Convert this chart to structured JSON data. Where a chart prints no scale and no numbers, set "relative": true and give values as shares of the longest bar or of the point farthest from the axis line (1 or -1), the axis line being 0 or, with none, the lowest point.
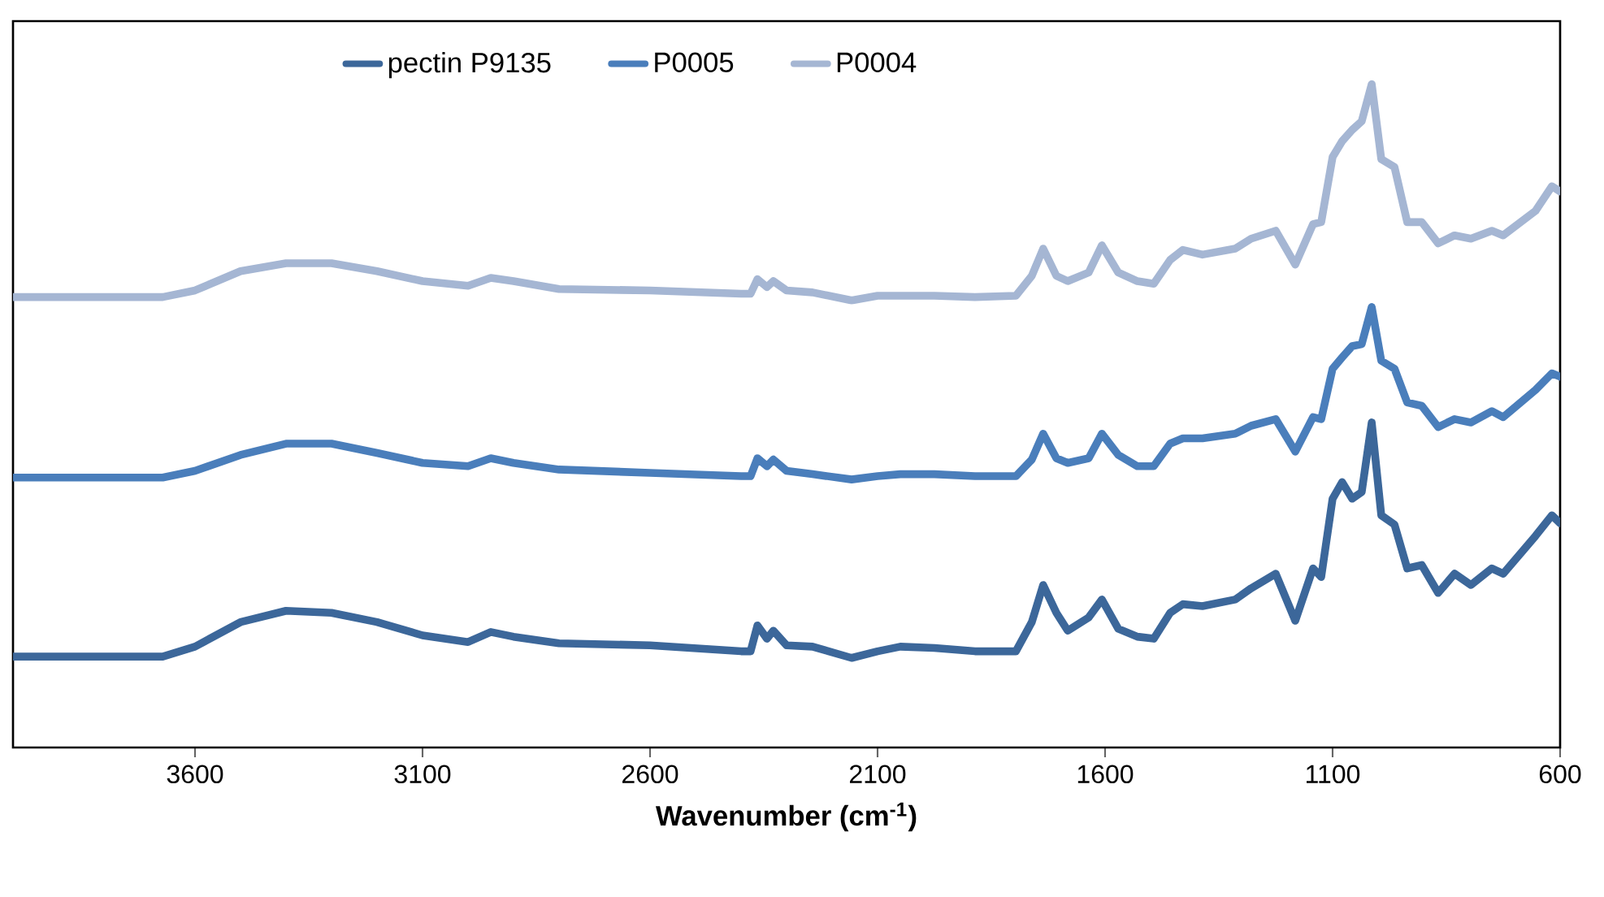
{
  "chart_data": {
    "type": "line",
    "relative": true,
    "xlabel": "**Wavenumber (cm$^{-1}$)**",
    "xlim": [
      4000,
      600
    ],
    "xticks": [
      3600,
      3100,
      2600,
      2100,
      1600,
      1100,
      600
    ],
    "legend": "top",
    "x": [
      4000,
      3671,
      3600,
      3500,
      3400,
      3300,
      3200,
      3100,
      3000,
      2950,
      2900,
      2800,
      2600,
      2400,
      2379,
      2364,
      2343,
      2329,
      2300,
      2243,
      2157,
      2100,
      2050,
      1975,
      1886,
      1796,
      1761,
      1736,
      1707,
      1682,
      1636,
      1607,
      1571,
      1529,
      1493,
      1457,
      1429,
      1386,
      1314,
      1279,
      1225,
      1182,
      1143,
      1125,
      1100,
      1079,
      1057,
      1036,
      1014,
      993,
      964,
      936,
      904,
      868,
      832,
      796,
      750,
      725,
      654,
      618,
      600
    ],
    "series": [
      {
        "name": "pectin P9135",
        "color": "#3c679a",
        "values": [
          0.137,
          0.137,
          0.152,
          0.189,
          0.206,
          0.203,
          0.189,
          0.169,
          0.159,
          0.174,
          0.167,
          0.157,
          0.154,
          0.145,
          0.145,
          0.184,
          0.164,
          0.176,
          0.154,
          0.152,
          0.135,
          0.145,
          0.152,
          0.15,
          0.145,
          0.145,
          0.189,
          0.245,
          0.203,
          0.176,
          0.196,
          0.223,
          0.179,
          0.167,
          0.164,
          0.203,
          0.216,
          0.213,
          0.223,
          0.24,
          0.262,
          0.191,
          0.27,
          0.257,
          0.375,
          0.4,
          0.375,
          0.385,
          0.49,
          0.35,
          0.336,
          0.27,
          0.275,
          0.233,
          0.262,
          0.245,
          0.27,
          0.262,
          0.319,
          0.35,
          0.338
        ]
      },
      {
        "name": "P0005",
        "color": "#4a7ebb",
        "values": [
          0.407,
          0.407,
          0.417,
          0.441,
          0.458,
          0.458,
          0.444,
          0.429,
          0.424,
          0.436,
          0.429,
          0.419,
          0.414,
          0.409,
          0.409,
          0.436,
          0.424,
          0.434,
          0.417,
          0.412,
          0.404,
          0.409,
          0.412,
          0.412,
          0.409,
          0.409,
          0.434,
          0.473,
          0.436,
          0.429,
          0.436,
          0.473,
          0.441,
          0.424,
          0.424,
          0.458,
          0.466,
          0.466,
          0.473,
          0.485,
          0.495,
          0.446,
          0.498,
          0.495,
          0.571,
          0.588,
          0.605,
          0.608,
          0.664,
          0.583,
          0.571,
          0.52,
          0.515,
          0.483,
          0.495,
          0.49,
          0.507,
          0.498,
          0.539,
          0.564,
          0.559
        ]
      },
      {
        "name": "P0004",
        "color": "#a5b6d3",
        "values": [
          0.679,
          0.679,
          0.689,
          0.718,
          0.73,
          0.73,
          0.718,
          0.703,
          0.696,
          0.708,
          0.703,
          0.691,
          0.689,
          0.684,
          0.684,
          0.706,
          0.694,
          0.703,
          0.689,
          0.686,
          0.674,
          0.681,
          0.681,
          0.681,
          0.679,
          0.681,
          0.711,
          0.752,
          0.711,
          0.703,
          0.716,
          0.757,
          0.716,
          0.703,
          0.699,
          0.735,
          0.75,
          0.743,
          0.752,
          0.767,
          0.779,
          0.728,
          0.789,
          0.792,
          0.89,
          0.914,
          0.931,
          0.944,
          1,
          0.887,
          0.875,
          0.792,
          0.792,
          0.76,
          0.772,
          0.767,
          0.779,
          0.772,
          0.809,
          0.846,
          0.838
        ]
      }
    ]
  }
}
